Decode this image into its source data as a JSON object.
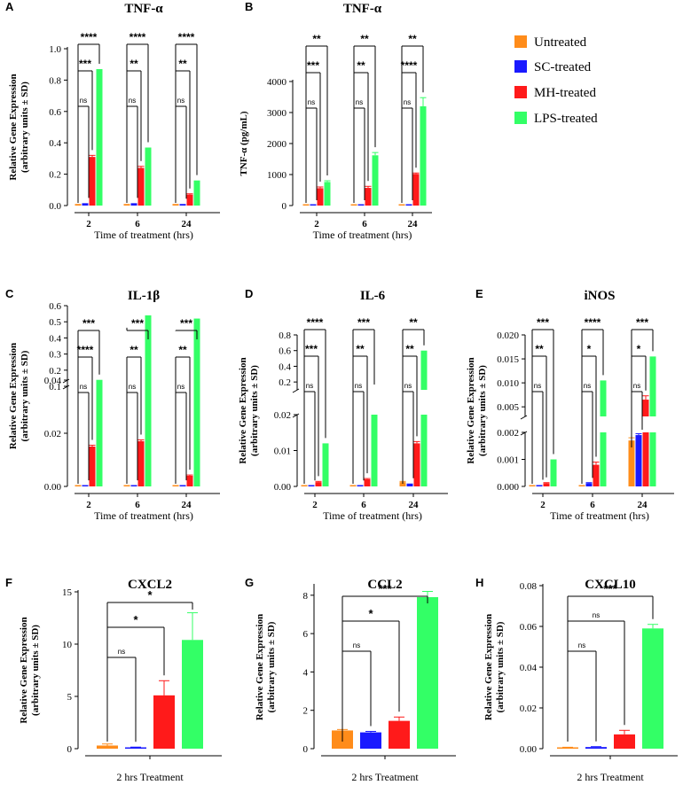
{
  "colors": {
    "Untreated": "#ff8c1a",
    "SC-treated": "#1a1aff",
    "MH-treated": "#ff1a1a",
    "LPS-treated": "#33ff66"
  },
  "legend": [
    "Untreated",
    "SC-treated",
    "MH-treated",
    "LPS-treated"
  ],
  "chart_data": [
    {
      "id": "A",
      "type": "bar",
      "title": "TNF-α",
      "ylabel": [
        "Relative Gene Expression",
        "(arbitrary units ± SD)"
      ],
      "xlabel": "Time of treatment (hrs)",
      "categories": [
        "2",
        "6",
        "24"
      ],
      "yticks": [
        "0.0",
        "0.2",
        "0.4",
        "0.6",
        "0.8",
        "1.0"
      ],
      "ylim": [
        0,
        1.0
      ],
      "series": [
        {
          "name": "Untreated",
          "values": [
            0.01,
            0.01,
            0.01
          ],
          "err": [
            0,
            0,
            0
          ]
        },
        {
          "name": "SC-treated",
          "values": [
            0.015,
            0.015,
            0.01
          ],
          "err": [
            0,
            0,
            0
          ]
        },
        {
          "name": "MH-treated",
          "values": [
            0.31,
            0.24,
            0.07
          ],
          "err": [
            0.01,
            0.01,
            0.005
          ]
        },
        {
          "name": "LPS-treated",
          "values": [
            0.87,
            0.37,
            0.16
          ],
          "err": [
            0,
            0,
            0
          ]
        }
      ],
      "sig": [
        [
          "****",
          "****",
          "****"
        ],
        [
          "***",
          "**",
          "**"
        ],
        [
          "ns",
          "ns",
          "ns"
        ]
      ]
    },
    {
      "id": "B",
      "type": "bar",
      "title": "TNF-α",
      "ylabel": [
        "TNF-α (pg/mL)"
      ],
      "xlabel": "Time of treatment (hrs)",
      "categories": [
        "2",
        "6",
        "24"
      ],
      "yticks": [
        "0",
        "1000",
        "2000",
        "3000",
        "4000"
      ],
      "ylim": [
        0,
        4000
      ],
      "series": [
        {
          "name": "Untreated",
          "values": [
            0,
            0,
            0
          ],
          "err": [
            0,
            0,
            0
          ]
        },
        {
          "name": "SC-treated",
          "values": [
            0,
            0,
            0
          ],
          "err": [
            0,
            0,
            0
          ]
        },
        {
          "name": "MH-treated",
          "values": [
            560,
            570,
            1020
          ],
          "err": [
            40,
            50,
            30
          ]
        },
        {
          "name": "LPS-treated",
          "values": [
            760,
            1620,
            3200
          ],
          "err": [
            40,
            90,
            280
          ]
        }
      ],
      "sig": [
        [
          "**",
          "**",
          "**"
        ],
        [
          "***",
          "**",
          "****"
        ],
        [
          "ns",
          "ns",
          "ns"
        ]
      ]
    },
    {
      "id": "C",
      "type": "bar",
      "title": "IL-1β",
      "ylabel": [
        "Relative Gene Expression",
        "(arbitrary units ± SD)"
      ],
      "xlabel": "Time of treatment (hrs)",
      "categories": [
        "2",
        "6",
        "24"
      ],
      "yticks_lower": [
        "0.00",
        "0.02",
        "0.04"
      ],
      "yticks_upper": [
        "0.1",
        "0.2",
        "0.3",
        "0.4",
        "0.5",
        "0.6"
      ],
      "ylim_lower": [
        0,
        0.04
      ],
      "ylim_upper": [
        0.1,
        0.6
      ],
      "series": [
        {
          "name": "Untreated",
          "values": [
            0.0002,
            0.0002,
            0.0002
          ],
          "err": [
            0,
            0,
            0
          ]
        },
        {
          "name": "SC-treated",
          "values": [
            0.0003,
            0.0003,
            0.0003
          ],
          "err": [
            0,
            0,
            0
          ]
        },
        {
          "name": "MH-treated",
          "values": [
            0.015,
            0.017,
            0.004
          ],
          "err": [
            0.0005,
            0.0005,
            0.0003
          ]
        },
        {
          "name": "LPS-treated",
          "values": [
            0.14,
            0.54,
            0.52
          ],
          "err": [
            0,
            0,
            0
          ]
        }
      ],
      "sig": [
        [
          "***",
          "***",
          "***"
        ],
        [
          "****",
          "**",
          "**"
        ],
        [
          "ns",
          "ns",
          "ns"
        ]
      ]
    },
    {
      "id": "D",
      "type": "bar",
      "title": "IL-6",
      "ylabel": [
        "Relative Gene Expression",
        "(arbitrary units ± SD)"
      ],
      "xlabel": "Time of treatment (hrs)",
      "categories": [
        "2",
        "6",
        "24"
      ],
      "yticks_lower": [
        "0.00",
        "0.01",
        "0.02"
      ],
      "yticks_upper": [
        "0.2",
        "0.4",
        "0.6",
        "0.8"
      ],
      "ylim_lower": [
        0,
        0.02
      ],
      "ylim_upper": [
        0.1,
        0.8
      ],
      "series": [
        {
          "name": "Untreated",
          "values": [
            0.0001,
            0.0001,
            0.0012
          ],
          "err": [
            0,
            0,
            0.0002
          ]
        },
        {
          "name": "SC-treated",
          "values": [
            0.0002,
            0.0002,
            0.0008
          ],
          "err": [
            0,
            0,
            0
          ]
        },
        {
          "name": "MH-treated",
          "values": [
            0.0012,
            0.002,
            0.012
          ],
          "err": [
            0.0002,
            0.0002,
            0.0005
          ]
        },
        {
          "name": "LPS-treated",
          "values": [
            0.012,
            0.1,
            0.6
          ],
          "err": [
            0,
            0,
            0
          ]
        }
      ],
      "sig": [
        [
          "****",
          "***",
          "**"
        ],
        [
          "***",
          "**",
          "**"
        ],
        [
          "ns",
          "ns",
          "ns"
        ]
      ]
    },
    {
      "id": "E",
      "type": "bar",
      "title": "iNOS",
      "ylabel": [
        "Relative Gene Expression",
        "(arbitrary units ± SD)"
      ],
      "xlabel": "Time of treatment (hrs)",
      "categories": [
        "2",
        "6",
        "24"
      ],
      "yticks_lower": [
        "0.000",
        "0.001",
        "0.002"
      ],
      "yticks_upper": [
        "0.005",
        "0.010",
        "0.015",
        "0.020"
      ],
      "ylim_lower": [
        0,
        0.002
      ],
      "ylim_upper": [
        0.003,
        0.02
      ],
      "series": [
        {
          "name": "Untreated",
          "values": [
            2e-05,
            2e-05,
            0.0017
          ],
          "err": [
            0,
            0,
            0.0001
          ]
        },
        {
          "name": "SC-treated",
          "values": [
            5e-05,
            0.00012,
            0.0019
          ],
          "err": [
            0,
            2e-05,
            5e-05
          ]
        },
        {
          "name": "MH-treated",
          "values": [
            0.00012,
            0.0008,
            0.0065
          ],
          "err": [
            2e-05,
            0.0001,
            0.0008
          ]
        },
        {
          "name": "LPS-treated",
          "values": [
            0.001,
            0.0105,
            0.0155
          ],
          "err": [
            0,
            0,
            0
          ]
        }
      ],
      "sig": [
        [
          "***",
          "****",
          "***"
        ],
        [
          "**",
          "*",
          "*"
        ],
        [
          "ns",
          "ns",
          "ns"
        ]
      ]
    },
    {
      "id": "F",
      "type": "bar",
      "title": "CXCL2",
      "ylabel": [
        "Relative Gene Expression",
        "(arbitrary units ± SD)"
      ],
      "xlabel": "2 hrs Treatment",
      "yticks": [
        "0",
        "5",
        "10",
        "15"
      ],
      "ylim": [
        0,
        15
      ],
      "series": [
        {
          "name": "Untreated",
          "values": [
            0.3
          ],
          "err": [
            0.15
          ]
        },
        {
          "name": "SC-treated",
          "values": [
            0.1
          ],
          "err": [
            0.05
          ]
        },
        {
          "name": "MH-treated",
          "values": [
            5.1
          ],
          "err": [
            1.4
          ]
        },
        {
          "name": "LPS-treated",
          "values": [
            10.4
          ],
          "err": [
            2.6
          ]
        }
      ],
      "sig": [
        "*",
        "*",
        "ns"
      ]
    },
    {
      "id": "G",
      "type": "bar",
      "title": "CCL2",
      "ylabel": [
        "Relative Gene Expression",
        "(arbitrary units ± SD)"
      ],
      "xlabel": "2 hrs Treatment",
      "yticks": [
        "0",
        "2",
        "4",
        "6",
        "8"
      ],
      "ylim": [
        0,
        8.5
      ],
      "series": [
        {
          "name": "Untreated",
          "values": [
            0.95
          ],
          "err": [
            0.05
          ]
        },
        {
          "name": "SC-treated",
          "values": [
            0.85
          ],
          "err": [
            0.05
          ]
        },
        {
          "name": "MH-treated",
          "values": [
            1.45
          ],
          "err": [
            0.2
          ]
        },
        {
          "name": "LPS-treated",
          "values": [
            7.9
          ],
          "err": [
            0.3
          ]
        }
      ],
      "sig": [
        "***",
        "*",
        "ns"
      ]
    },
    {
      "id": "H",
      "type": "bar",
      "title": "CXCL10",
      "ylabel": [
        "Relative Gene Expression",
        "(arbitrary units ± SD)"
      ],
      "xlabel": "2 hrs Treatment",
      "yticks": [
        "0.00",
        "0.02",
        "0.04",
        "0.06",
        "0.08"
      ],
      "ylim": [
        0,
        0.08
      ],
      "series": [
        {
          "name": "Untreated",
          "values": [
            0.0005
          ],
          "err": [
            0.0002
          ]
        },
        {
          "name": "SC-treated",
          "values": [
            0.0008
          ],
          "err": [
            0.0002
          ]
        },
        {
          "name": "MH-treated",
          "values": [
            0.007
          ],
          "err": [
            0.002
          ]
        },
        {
          "name": "LPS-treated",
          "values": [
            0.059
          ],
          "err": [
            0.002
          ]
        }
      ],
      "sig": [
        "***",
        "ns",
        "ns"
      ]
    }
  ]
}
